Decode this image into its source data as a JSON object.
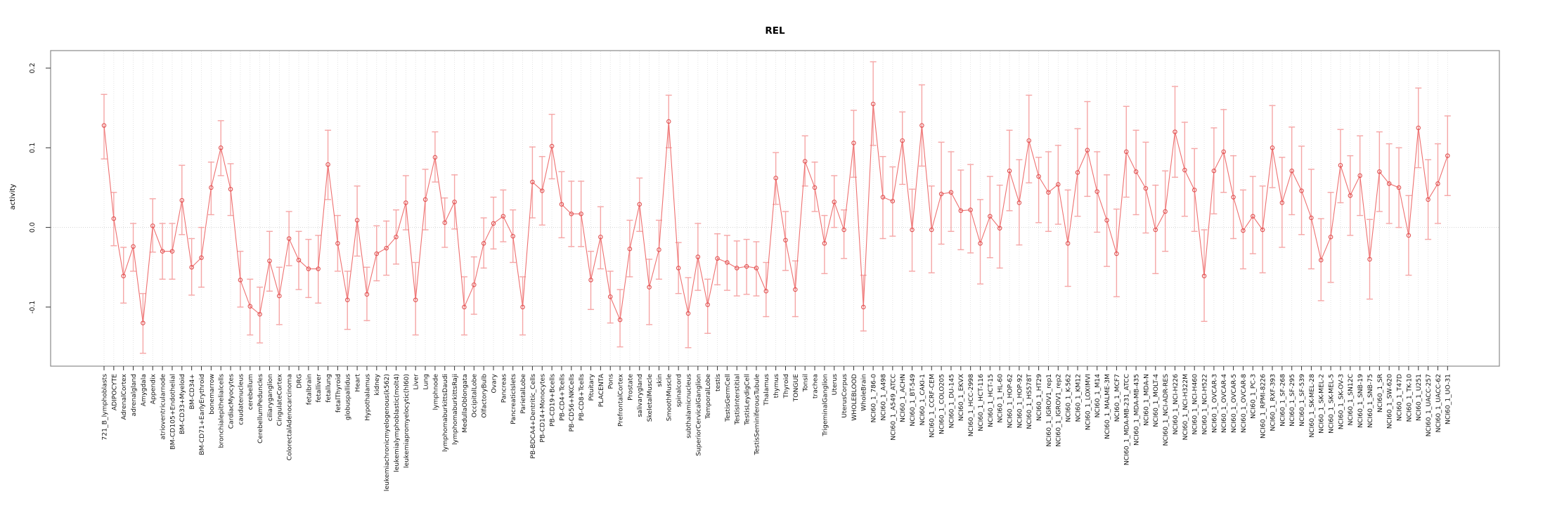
{
  "chart_data": {
    "type": "line",
    "title": "REL",
    "xlabel": "",
    "ylabel": "activity",
    "ylim": [
      -0.175,
      0.222
    ],
    "yticks": [
      0.2,
      0.1,
      0.0,
      -0.1
    ],
    "grid": "dotted vertical gridline per category; dotted horizontal line at y=0",
    "legend_position": "none",
    "marker": "open-circle with asymmetric error bars",
    "colors": {
      "line": "#ee7070",
      "marker_stroke": "#e05252",
      "error_bar": "#f5a6a6",
      "box": "#8a8a8a",
      "gridline": "#dcdcdc"
    },
    "categories": [
      "721_B_lymphoblasts",
      "ADIPOCYTE",
      "AdrenalCortex",
      "adrenalgland",
      "Amygdala",
      "Appendix",
      "atrioventricularnode",
      "BM-CD105+Endothelial",
      "BM-CD33+Myeloid",
      "BM-CD34+",
      "BM-CD71+EarlyErythroid",
      "bonemarrow",
      "bronchialepithelialcells",
      "CardiacMyocytes",
      "caudatenucleus",
      "cerebellum",
      "CerebellumPeduncles",
      "ciliaryganglion",
      "CingulateCortex",
      "ColorectalAdenocarcinoma",
      "DRG",
      "fetalbrain",
      "fetalliver",
      "fetallung",
      "fetalThyroid",
      "globuspallidus",
      "Heart",
      "Hypothalamus",
      "kidney",
      "leukemiachronicmyelogenous(k562)",
      "leukemialymphoblastic(molt4)",
      "leukemiapromyelocytic(hl60)",
      "Liver",
      "Lung",
      "lymphnode",
      "lymphomaburkittsDaudi",
      "lymphomaburkittsRaji",
      "MedullaOblongata",
      "OccipitalLobe",
      "OlfactoryBulb",
      "Ovary",
      "Pancreas",
      "PancreaticIslets",
      "ParietalLobe",
      "PB-BDCA4+Dentritic_Cells",
      "PB-CD14+Monocytes",
      "PB-CD19+Bcells",
      "PB-CD4+Tcells",
      "PB-CD56+NKCells",
      "PB-CD8+Tcells",
      "Pituitary",
      "PLACENTA",
      "Pons",
      "PrefrontalCortex",
      "Prostate",
      "salivarygland",
      "SkeletalMuscle",
      "skin",
      "SmoothMuscle",
      "spinalcord",
      "subthalamicnucleus",
      "SuperiorCervicalGanglion",
      "TemporalLobe",
      "testis",
      "TestisGermCell",
      "TestisInterstitial",
      "TestisLeydigCell",
      "TestisSeminiferousTubule",
      "Thalamus",
      "thymus",
      "Thyroid",
      "TONGUE",
      "Tonsil",
      "trachea",
      "TrigeminalGanglion",
      "Uterus",
      "UterusCorpus",
      "WHOLEBLOOD",
      "WholeBrain",
      "NCI60_1_786-0",
      "NCI60_1_A498",
      "NCI60_1_A549_ATCC",
      "NCI60_1_ACHN",
      "NCI60_1_BT-549",
      "NCI60_1_CAKI-1",
      "NCI60_1_CCRF-CEM",
      "NCI60_1_COLO205",
      "NCI60_1_DU-145",
      "NCI60_1_EKVX",
      "NCI60_1_HCC-2998",
      "NCI60_1_HCT-116",
      "NCI60_1_HCT-15",
      "NCI60_1_HL-60",
      "NCI60_1_HOP-62",
      "NCI60_1_HOP-92",
      "NCI60_1_HS578T",
      "NCI60_1_HT29",
      "NCI60_1_IGROV1_rep1",
      "NCI60_1_IGROV1_rep2",
      "NCI60_1_K-562",
      "NCI60_1_KM12",
      "NCI60_1_LOXIMVI",
      "NCI60_1_M14",
      "NCI60_1_MALME-3M",
      "NCI60_1_MCF7",
      "NCI60_1_MDA-MB-231_ATCC",
      "NCI60_1_MDA-MB-435",
      "NCI60_1_MDA-N",
      "NCI60_1_MOLT-4",
      "NCI60_1_NCI-ADR-RES",
      "NCI60_1_NCI-H226",
      "NCI60_1_NCI-H322M",
      "NCI60_1_NCI-H460",
      "NCI60_1_NCI-H522",
      "NCI60_1_OVCAR-3",
      "NCI60_1_OVCAR-4",
      "NCI60_1_OVCAR-5",
      "NCI60_1_OVCAR-8",
      "NCI60_1_PC-3",
      "NCI60_1_RPMI-8226",
      "NCI60_1_RXF-393",
      "NCI60_1_SF-268",
      "NCI60_1_SF-295",
      "NCI60_1_SF-539",
      "NCI60_1_SK-MEL-28",
      "NCI60_1_SK-MEL-2",
      "NCI60_1_SK-MEL-5",
      "NCI60_1_SK-OV-3",
      "NCI60_1_SN12C",
      "NCI60_1_SNB-19",
      "NCI60_1_SNB-75",
      "NCI60_1_SR",
      "NCI60_1_SW-620",
      "NCI60_1_T47D",
      "NCI60_1_TK-10",
      "NCI60_1_U251",
      "NCI60_1_UACC-257",
      "NCI60_1_UACC-62",
      "NCI60_1_UO-31"
    ],
    "values": [
      0.128,
      0.011,
      -0.061,
      -0.024,
      -0.12,
      0.002,
      -0.03,
      -0.03,
      0.034,
      -0.05,
      -0.038,
      0.05,
      0.1,
      0.048,
      -0.066,
      -0.099,
      -0.109,
      -0.042,
      -0.086,
      -0.014,
      -0.041,
      -0.052,
      -0.052,
      0.079,
      -0.02,
      -0.091,
      0.009,
      -0.084,
      -0.033,
      -0.026,
      -0.012,
      0.031,
      -0.091,
      0.035,
      0.088,
      0.006,
      0.032,
      -0.1,
      -0.072,
      -0.02,
      0.005,
      0.014,
      -0.011,
      -0.1,
      0.057,
      0.046,
      0.102,
      0.029,
      0.017,
      0.017,
      -0.066,
      -0.012,
      -0.087,
      -0.116,
      -0.027,
      0.029,
      -0.075,
      -0.028,
      0.133,
      -0.051,
      -0.108,
      -0.037,
      -0.097,
      -0.039,
      -0.044,
      -0.051,
      -0.049,
      -0.051,
      -0.08,
      0.062,
      -0.016,
      -0.078,
      0.083,
      0.05,
      -0.02,
      0.032,
      -0.003,
      0.106,
      -0.1,
      0.155,
      0.038,
      0.033,
      0.109,
      -0.003,
      0.128,
      -0.003,
      0.042,
      0.044,
      0.021,
      0.022,
      -0.02,
      0.014,
      -0.001,
      0.071,
      0.031,
      0.109,
      0.064,
      0.044,
      0.054,
      -0.02,
      0.069,
      0.097,
      0.045,
      0.009,
      -0.033,
      0.095,
      0.07,
      0.049,
      -0.003,
      0.02,
      0.12,
      0.072,
      0.047,
      -0.061,
      0.071,
      0.095,
      0.038,
      -0.004,
      0.014,
      -0.003,
      0.1,
      0.031,
      0.071,
      0.046,
      0.012,
      -0.041,
      -0.012,
      0.078,
      0.04,
      0.065,
      -0.04,
      0.07,
      0.055,
      0.05,
      -0.01,
      0.125,
      0.035,
      0.055,
      0.09
    ],
    "err_hi": [
      0.167,
      0.044,
      -0.025,
      0.005,
      -0.083,
      0.036,
      0.005,
      0.005,
      0.078,
      -0.014,
      0.0,
      0.082,
      0.134,
      0.08,
      -0.03,
      -0.065,
      -0.075,
      -0.005,
      -0.05,
      0.02,
      -0.005,
      -0.015,
      -0.01,
      0.122,
      0.015,
      -0.055,
      0.052,
      -0.05,
      0.002,
      0.008,
      0.022,
      0.065,
      -0.044,
      0.073,
      0.12,
      0.037,
      0.066,
      -0.062,
      -0.037,
      0.012,
      0.038,
      0.047,
      0.022,
      -0.062,
      0.101,
      0.089,
      0.142,
      0.07,
      0.058,
      0.058,
      -0.03,
      0.026,
      -0.055,
      -0.078,
      0.009,
      0.062,
      -0.04,
      0.009,
      0.166,
      -0.019,
      -0.063,
      0.005,
      -0.065,
      -0.008,
      -0.01,
      -0.017,
      -0.015,
      -0.018,
      -0.044,
      0.094,
      0.02,
      -0.042,
      0.115,
      0.082,
      0.015,
      0.065,
      0.022,
      0.147,
      -0.06,
      0.208,
      0.089,
      0.076,
      0.145,
      0.048,
      0.179,
      0.052,
      0.107,
      0.095,
      0.072,
      0.079,
      0.035,
      0.064,
      0.053,
      0.122,
      0.085,
      0.166,
      0.088,
      0.095,
      0.103,
      0.047,
      0.124,
      0.158,
      0.095,
      0.066,
      0.023,
      0.152,
      0.122,
      0.107,
      0.053,
      0.071,
      0.177,
      0.132,
      0.099,
      -0.003,
      0.125,
      0.148,
      0.09,
      0.047,
      0.064,
      0.052,
      0.153,
      0.088,
      0.126,
      0.102,
      0.073,
      0.011,
      0.044,
      0.123,
      0.09,
      0.115,
      0.01,
      0.12,
      0.105,
      0.1,
      0.04,
      0.175,
      0.085,
      0.105,
      0.14
    ],
    "err_lo": [
      0.086,
      -0.023,
      -0.095,
      -0.055,
      -0.158,
      -0.031,
      -0.065,
      -0.065,
      -0.009,
      -0.085,
      -0.075,
      0.016,
      0.065,
      0.015,
      -0.1,
      -0.135,
      -0.145,
      -0.08,
      -0.122,
      -0.048,
      -0.078,
      -0.088,
      -0.095,
      0.035,
      -0.055,
      -0.128,
      -0.036,
      -0.117,
      -0.067,
      -0.06,
      -0.046,
      -0.003,
      -0.135,
      -0.003,
      0.057,
      -0.025,
      -0.002,
      -0.135,
      -0.109,
      -0.051,
      -0.027,
      -0.018,
      -0.044,
      -0.135,
      0.012,
      0.003,
      0.061,
      -0.013,
      -0.024,
      -0.024,
      -0.103,
      -0.052,
      -0.12,
      -0.15,
      -0.062,
      -0.005,
      -0.122,
      -0.065,
      0.1,
      -0.083,
      -0.151,
      -0.079,
      -0.133,
      -0.072,
      -0.079,
      -0.086,
      -0.084,
      -0.086,
      -0.112,
      0.029,
      -0.054,
      -0.112,
      0.052,
      0.02,
      -0.058,
      0.0,
      -0.039,
      0.063,
      -0.13,
      0.103,
      -0.014,
      -0.011,
      0.054,
      -0.055,
      0.077,
      -0.057,
      -0.021,
      -0.005,
      -0.028,
      -0.032,
      -0.071,
      -0.038,
      -0.051,
      0.021,
      -0.022,
      0.056,
      0.006,
      -0.005,
      0.004,
      -0.074,
      0.014,
      0.039,
      -0.006,
      -0.049,
      -0.087,
      0.038,
      0.016,
      -0.007,
      -0.058,
      -0.03,
      0.063,
      0.014,
      -0.005,
      -0.118,
      0.017,
      0.044,
      -0.014,
      -0.052,
      -0.033,
      -0.057,
      0.05,
      -0.025,
      0.016,
      -0.009,
      -0.052,
      -0.092,
      -0.069,
      0.031,
      -0.01,
      0.015,
      -0.09,
      0.02,
      0.005,
      0.0,
      -0.06,
      0.075,
      -0.015,
      0.005,
      0.04
    ]
  }
}
